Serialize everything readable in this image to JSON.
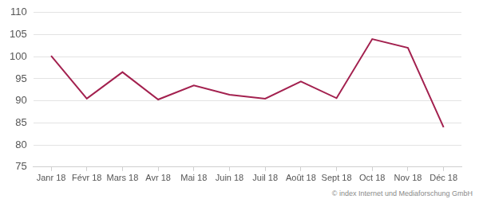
{
  "chart_data": {
    "type": "line",
    "categories": [
      "Janr 18",
      "Févr 18",
      "Mars 18",
      "Avr 18",
      "Mai 18",
      "Juin 18",
      "Juil 18",
      "Août 18",
      "Sept 18",
      "Oct 18",
      "Nov 18",
      "Déc 18"
    ],
    "values": [
      100.2,
      90.5,
      96.5,
      90.3,
      93.5,
      91.4,
      90.5,
      94.4,
      90.6,
      104,
      102,
      84
    ],
    "color": "#a3214f",
    "ylim": [
      75,
      110
    ],
    "yticks": [
      75,
      80,
      85,
      90,
      95,
      100,
      105,
      110
    ],
    "grid": true,
    "source": "© index Internet und Mediaforschung GmbH"
  }
}
